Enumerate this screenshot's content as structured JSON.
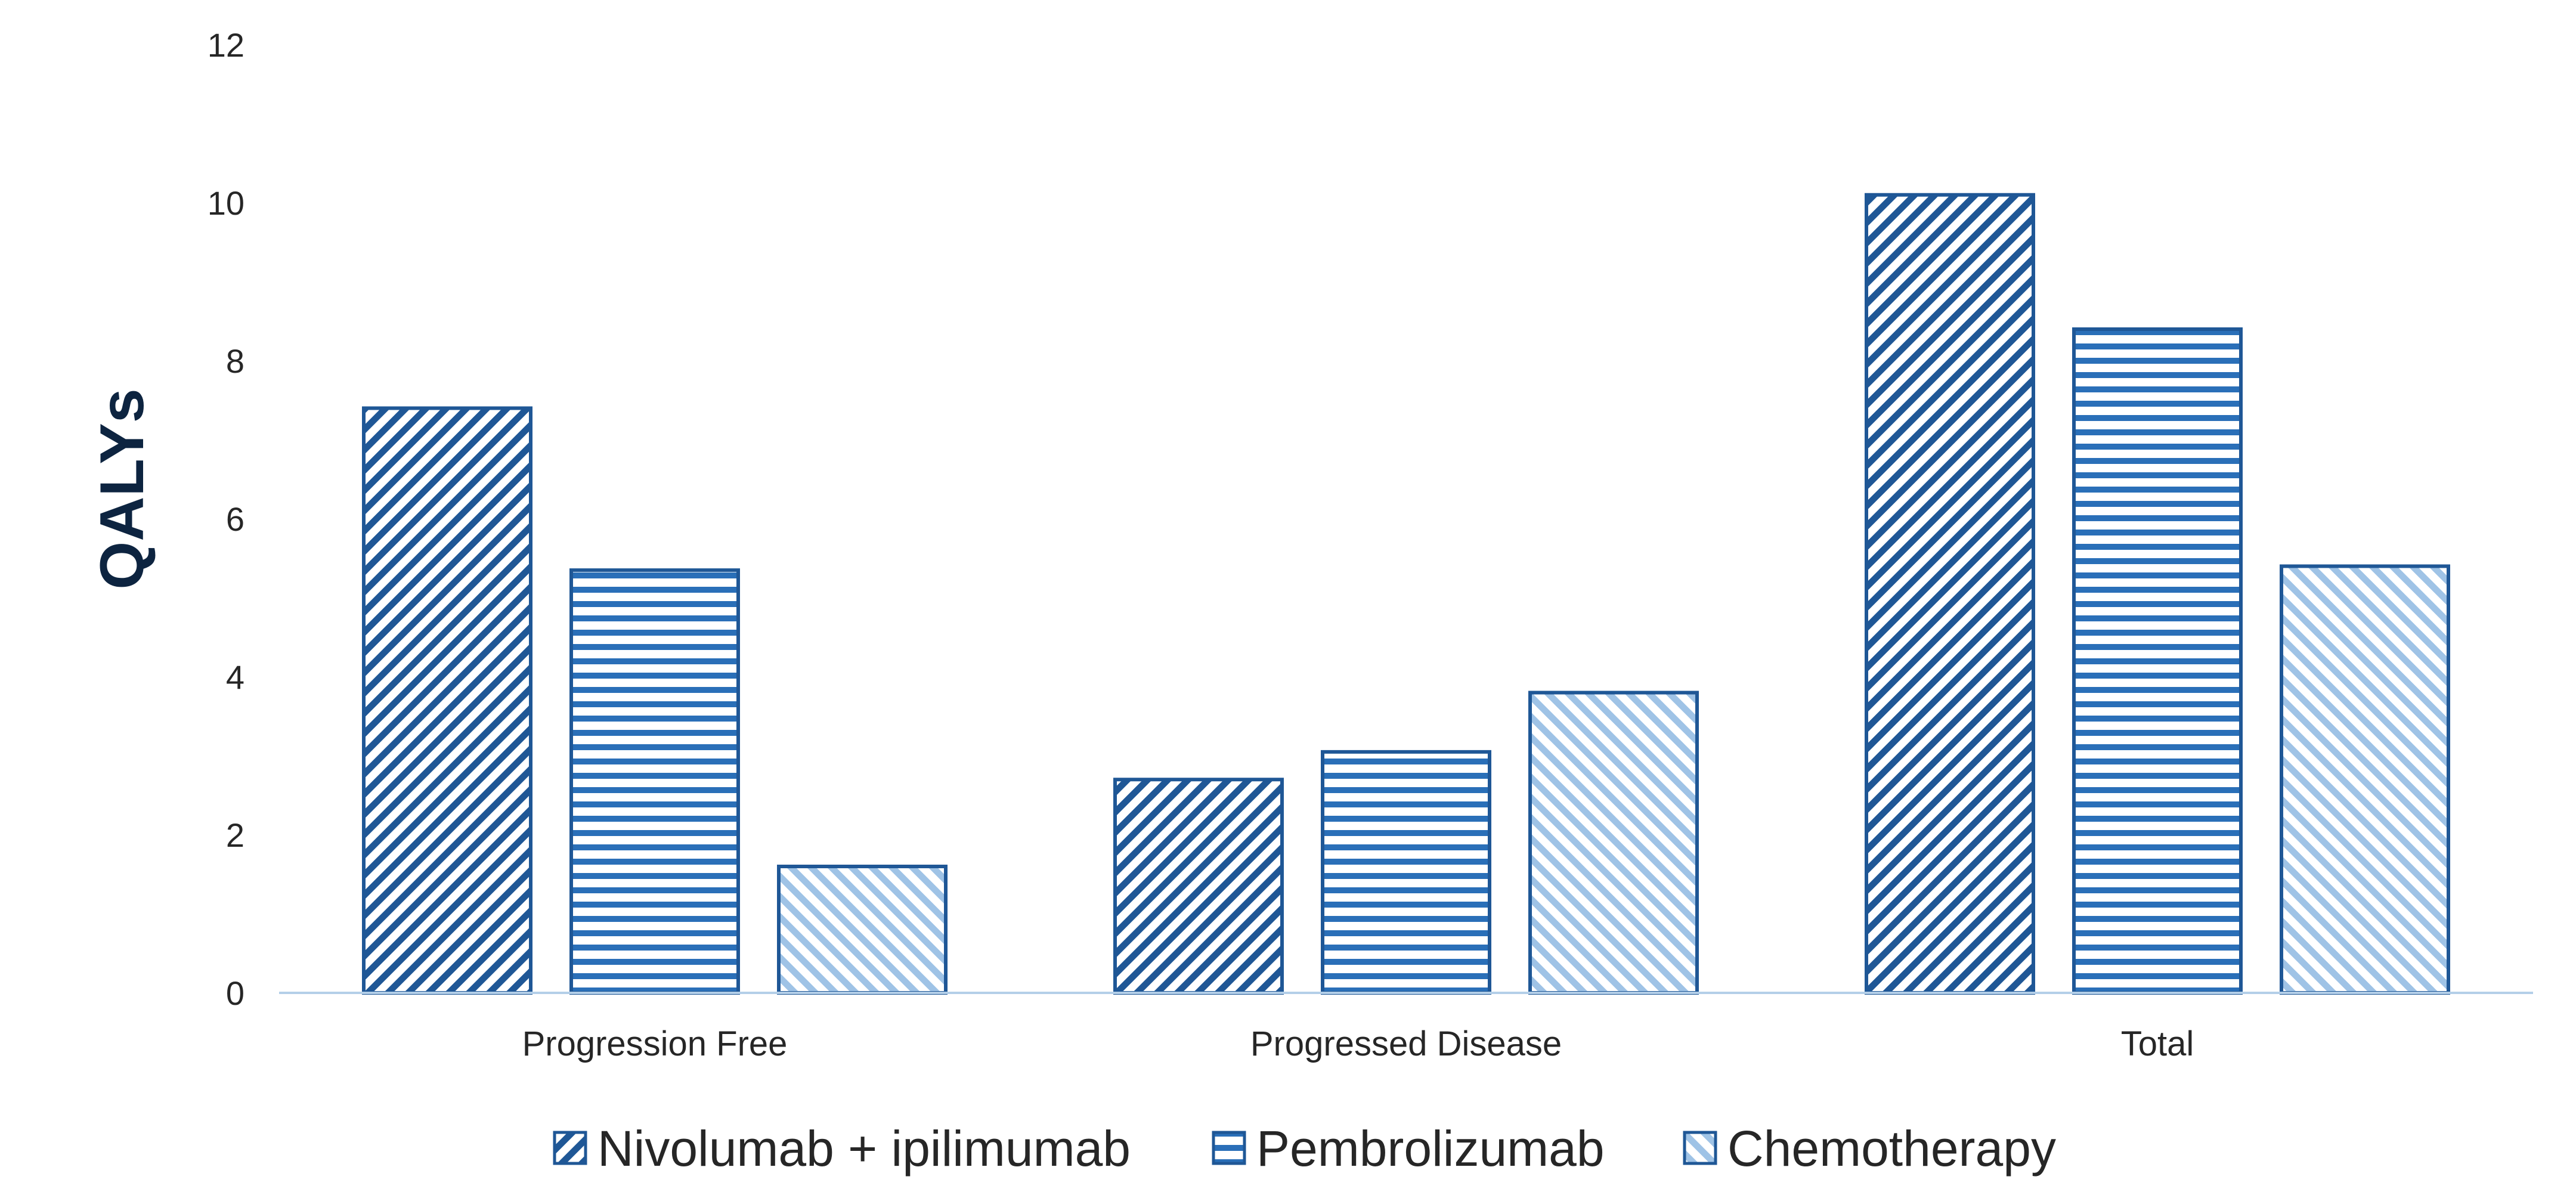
{
  "chart_data": {
    "type": "bar",
    "title": "",
    "xlabel": "",
    "ylabel": "QALYs",
    "ylim": [
      0,
      12
    ],
    "yticks": [
      0,
      2,
      4,
      6,
      8,
      10,
      12
    ],
    "categories": [
      "Progression Free",
      "Progressed Disease",
      "Total"
    ],
    "series": [
      {
        "name": "Nivolumab + ipilimumab",
        "values": [
          7.4,
          2.7,
          10.1
        ],
        "pattern": "diagonal-up",
        "color": "#1f5796"
      },
      {
        "name": "Pembrolizumab",
        "values": [
          5.35,
          3.05,
          8.4
        ],
        "pattern": "horizontal",
        "color": "#2a6fb8"
      },
      {
        "name": "Chemotherapy",
        "values": [
          1.6,
          3.8,
          5.4
        ],
        "pattern": "diagonal-down",
        "color": "#9fc3e6"
      }
    ],
    "grid": false,
    "legend_position": "bottom",
    "colors": {
      "axis": "#b4cfe8",
      "bar_outline": "#1f5796"
    }
  }
}
